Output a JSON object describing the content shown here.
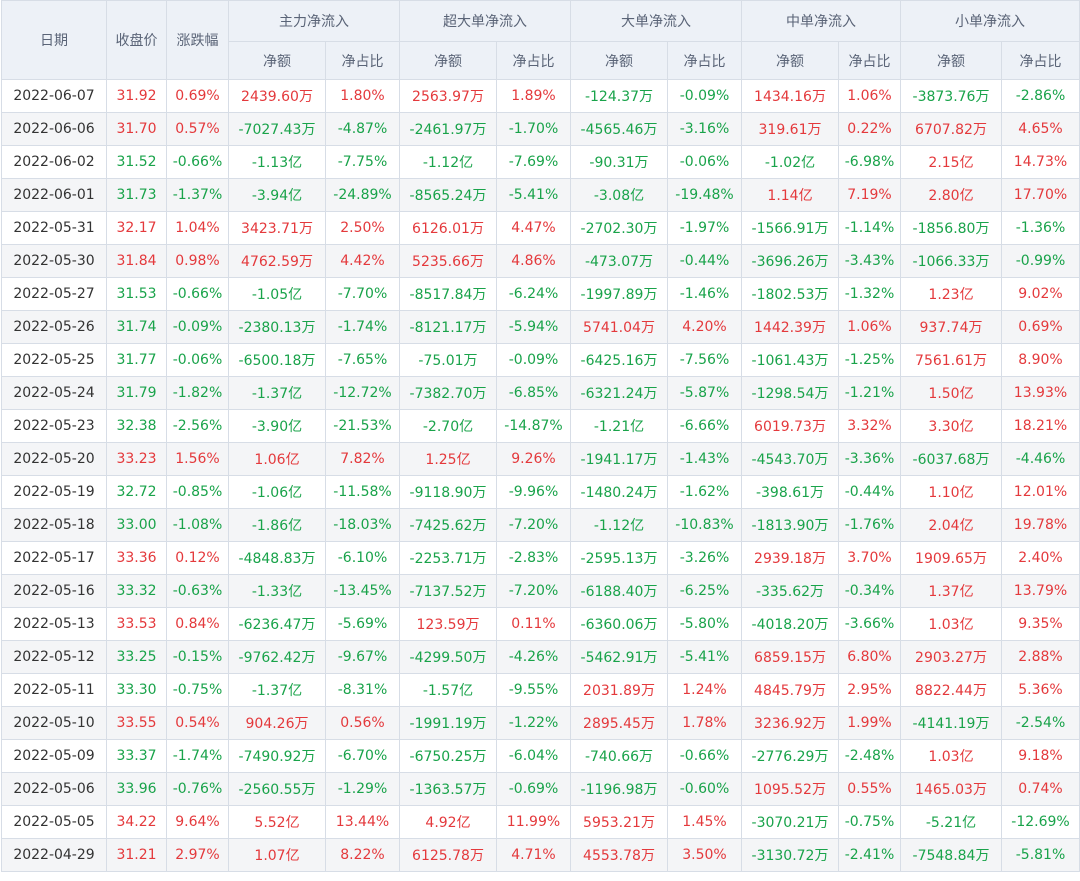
{
  "headers": {
    "date": "日期",
    "close": "收盘价",
    "change": "涨跌幅",
    "groups": [
      "主力净流入",
      "超大单净流入",
      "大单净流入",
      "中单净流入",
      "小单净流入"
    ],
    "net_amount": "净额",
    "net_ratio": "净占比"
  },
  "colors": {
    "up": "#e4393c",
    "down": "#19a34a",
    "header_bg": "#edf1f7",
    "border": "#d7dde6"
  },
  "rows": [
    {
      "date": "2022-06-07",
      "close": "31.92",
      "change": "0.69%",
      "vals": [
        "2439.60万",
        "1.80%",
        "2563.97万",
        "1.89%",
        "-124.37万",
        "-0.09%",
        "1434.16万",
        "1.06%",
        "-3873.76万",
        "-2.86%"
      ]
    },
    {
      "date": "2022-06-06",
      "close": "31.70",
      "change": "0.57%",
      "vals": [
        "-7027.43万",
        "-4.87%",
        "-2461.97万",
        "-1.70%",
        "-4565.46万",
        "-3.16%",
        "319.61万",
        "0.22%",
        "6707.82万",
        "4.65%"
      ]
    },
    {
      "date": "2022-06-02",
      "close": "31.52",
      "change": "-0.66%",
      "vals": [
        "-1.13亿",
        "-7.75%",
        "-1.12亿",
        "-7.69%",
        "-90.31万",
        "-0.06%",
        "-1.02亿",
        "-6.98%",
        "2.15亿",
        "14.73%"
      ]
    },
    {
      "date": "2022-06-01",
      "close": "31.73",
      "change": "-1.37%",
      "vals": [
        "-3.94亿",
        "-24.89%",
        "-8565.24万",
        "-5.41%",
        "-3.08亿",
        "-19.48%",
        "1.14亿",
        "7.19%",
        "2.80亿",
        "17.70%"
      ]
    },
    {
      "date": "2022-05-31",
      "close": "32.17",
      "change": "1.04%",
      "vals": [
        "3423.71万",
        "2.50%",
        "6126.01万",
        "4.47%",
        "-2702.30万",
        "-1.97%",
        "-1566.91万",
        "-1.14%",
        "-1856.80万",
        "-1.36%"
      ]
    },
    {
      "date": "2022-05-30",
      "close": "31.84",
      "change": "0.98%",
      "vals": [
        "4762.59万",
        "4.42%",
        "5235.66万",
        "4.86%",
        "-473.07万",
        "-0.44%",
        "-3696.26万",
        "-3.43%",
        "-1066.33万",
        "-0.99%"
      ]
    },
    {
      "date": "2022-05-27",
      "close": "31.53",
      "change": "-0.66%",
      "vals": [
        "-1.05亿",
        "-7.70%",
        "-8517.84万",
        "-6.24%",
        "-1997.89万",
        "-1.46%",
        "-1802.53万",
        "-1.32%",
        "1.23亿",
        "9.02%"
      ]
    },
    {
      "date": "2022-05-26",
      "close": "31.74",
      "change": "-0.09%",
      "vals": [
        "-2380.13万",
        "-1.74%",
        "-8121.17万",
        "-5.94%",
        "5741.04万",
        "4.20%",
        "1442.39万",
        "1.06%",
        "937.74万",
        "0.69%"
      ]
    },
    {
      "date": "2022-05-25",
      "close": "31.77",
      "change": "-0.06%",
      "vals": [
        "-6500.18万",
        "-7.65%",
        "-75.01万",
        "-0.09%",
        "-6425.16万",
        "-7.56%",
        "-1061.43万",
        "-1.25%",
        "7561.61万",
        "8.90%"
      ]
    },
    {
      "date": "2022-05-24",
      "close": "31.79",
      "change": "-1.82%",
      "vals": [
        "-1.37亿",
        "-12.72%",
        "-7382.70万",
        "-6.85%",
        "-6321.24万",
        "-5.87%",
        "-1298.54万",
        "-1.21%",
        "1.50亿",
        "13.93%"
      ]
    },
    {
      "date": "2022-05-23",
      "close": "32.38",
      "change": "-2.56%",
      "vals": [
        "-3.90亿",
        "-21.53%",
        "-2.70亿",
        "-14.87%",
        "-1.21亿",
        "-6.66%",
        "6019.73万",
        "3.32%",
        "3.30亿",
        "18.21%"
      ]
    },
    {
      "date": "2022-05-20",
      "close": "33.23",
      "change": "1.56%",
      "vals": [
        "1.06亿",
        "7.82%",
        "1.25亿",
        "9.26%",
        "-1941.17万",
        "-1.43%",
        "-4543.70万",
        "-3.36%",
        "-6037.68万",
        "-4.46%"
      ]
    },
    {
      "date": "2022-05-19",
      "close": "32.72",
      "change": "-0.85%",
      "vals": [
        "-1.06亿",
        "-11.58%",
        "-9118.90万",
        "-9.96%",
        "-1480.24万",
        "-1.62%",
        "-398.61万",
        "-0.44%",
        "1.10亿",
        "12.01%"
      ]
    },
    {
      "date": "2022-05-18",
      "close": "33.00",
      "change": "-1.08%",
      "vals": [
        "-1.86亿",
        "-18.03%",
        "-7425.62万",
        "-7.20%",
        "-1.12亿",
        "-10.83%",
        "-1813.90万",
        "-1.76%",
        "2.04亿",
        "19.78%"
      ]
    },
    {
      "date": "2022-05-17",
      "close": "33.36",
      "change": "0.12%",
      "vals": [
        "-4848.83万",
        "-6.10%",
        "-2253.71万",
        "-2.83%",
        "-2595.13万",
        "-3.26%",
        "2939.18万",
        "3.70%",
        "1909.65万",
        "2.40%"
      ]
    },
    {
      "date": "2022-05-16",
      "close": "33.32",
      "change": "-0.63%",
      "vals": [
        "-1.33亿",
        "-13.45%",
        "-7137.52万",
        "-7.20%",
        "-6188.40万",
        "-6.25%",
        "-335.62万",
        "-0.34%",
        "1.37亿",
        "13.79%"
      ]
    },
    {
      "date": "2022-05-13",
      "close": "33.53",
      "change": "0.84%",
      "vals": [
        "-6236.47万",
        "-5.69%",
        "123.59万",
        "0.11%",
        "-6360.06万",
        "-5.80%",
        "-4018.20万",
        "-3.66%",
        "1.03亿",
        "9.35%"
      ]
    },
    {
      "date": "2022-05-12",
      "close": "33.25",
      "change": "-0.15%",
      "vals": [
        "-9762.42万",
        "-9.67%",
        "-4299.50万",
        "-4.26%",
        "-5462.91万",
        "-5.41%",
        "6859.15万",
        "6.80%",
        "2903.27万",
        "2.88%"
      ]
    },
    {
      "date": "2022-05-11",
      "close": "33.30",
      "change": "-0.75%",
      "vals": [
        "-1.37亿",
        "-8.31%",
        "-1.57亿",
        "-9.55%",
        "2031.89万",
        "1.24%",
        "4845.79万",
        "2.95%",
        "8822.44万",
        "5.36%"
      ]
    },
    {
      "date": "2022-05-10",
      "close": "33.55",
      "change": "0.54%",
      "vals": [
        "904.26万",
        "0.56%",
        "-1991.19万",
        "-1.22%",
        "2895.45万",
        "1.78%",
        "3236.92万",
        "1.99%",
        "-4141.19万",
        "-2.54%"
      ]
    },
    {
      "date": "2022-05-09",
      "close": "33.37",
      "change": "-1.74%",
      "vals": [
        "-7490.92万",
        "-6.70%",
        "-6750.25万",
        "-6.04%",
        "-740.66万",
        "-0.66%",
        "-2776.29万",
        "-2.48%",
        "1.03亿",
        "9.18%"
      ]
    },
    {
      "date": "2022-05-06",
      "close": "33.96",
      "change": "-0.76%",
      "vals": [
        "-2560.55万",
        "-1.29%",
        "-1363.57万",
        "-0.69%",
        "-1196.98万",
        "-0.60%",
        "1095.52万",
        "0.55%",
        "1465.03万",
        "0.74%"
      ]
    },
    {
      "date": "2022-05-05",
      "close": "34.22",
      "change": "9.64%",
      "vals": [
        "5.52亿",
        "13.44%",
        "4.92亿",
        "11.99%",
        "5953.21万",
        "1.45%",
        "-3070.21万",
        "-0.75%",
        "-5.21亿",
        "-12.69%"
      ]
    },
    {
      "date": "2022-04-29",
      "close": "31.21",
      "change": "2.97%",
      "vals": [
        "1.07亿",
        "8.22%",
        "6125.78万",
        "4.71%",
        "4553.78万",
        "3.50%",
        "-3130.72万",
        "-2.41%",
        "-7548.84万",
        "-5.81%"
      ]
    }
  ]
}
